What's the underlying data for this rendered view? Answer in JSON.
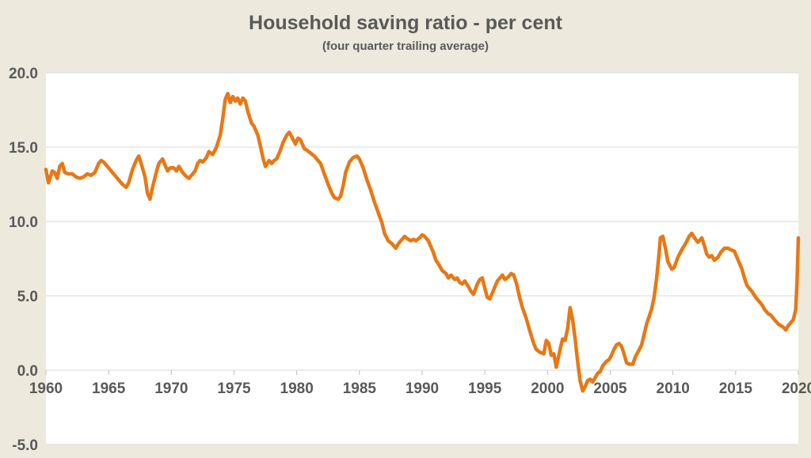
{
  "page": {
    "title": "Household saving ratio - per cent",
    "subtitle": "(four quarter trailing average)"
  },
  "chart_data": {
    "type": "line",
    "title": "Household saving ratio - per cent",
    "subtitle": "(four quarter trailing average)",
    "xlabel": "",
    "ylabel": "",
    "x_range": [
      1960,
      2020
    ],
    "ylim": [
      -5.0,
      20.0
    ],
    "grid": true,
    "legend_position": "none",
    "y_ticks": [
      {
        "value": 20.0,
        "label": "20.0"
      },
      {
        "value": 15.0,
        "label": "15.0"
      },
      {
        "value": 10.0,
        "label": "10.0"
      },
      {
        "value": 5.0,
        "label": "5.0"
      },
      {
        "value": 0.0,
        "label": "0.0"
      },
      {
        "value": -5.0,
        "label": "-5.0"
      }
    ],
    "x_ticks": [
      {
        "value": 1960,
        "label": "1960"
      },
      {
        "value": 1965,
        "label": "1965"
      },
      {
        "value": 1970,
        "label": "1970"
      },
      {
        "value": 1975,
        "label": "1975"
      },
      {
        "value": 1980,
        "label": "1980"
      },
      {
        "value": 1985,
        "label": "1985"
      },
      {
        "value": 1990,
        "label": "1990"
      },
      {
        "value": 1995,
        "label": "1995"
      },
      {
        "value": 2000,
        "label": "2000"
      },
      {
        "value": 2005,
        "label": "2005"
      },
      {
        "value": 2010,
        "label": "2010"
      },
      {
        "value": 2015,
        "label": "2015"
      },
      {
        "value": 2020,
        "label": "2020"
      }
    ],
    "colors": {
      "line": "#E87815",
      "background": "#EDE9DD",
      "plot_background": "#FFFFFF",
      "gridline": "#D9D9D9",
      "tick": "#BFBFBF",
      "text": "#595959"
    },
    "series": [
      {
        "name": "Household saving ratio (four quarter trailing average)",
        "points": [
          [
            1960.0,
            13.5
          ],
          [
            1960.2,
            12.6
          ],
          [
            1960.4,
            13.1
          ],
          [
            1960.5,
            13.4
          ],
          [
            1960.7,
            13.3
          ],
          [
            1960.9,
            12.9
          ],
          [
            1961.1,
            13.7
          ],
          [
            1961.3,
            13.9
          ],
          [
            1961.5,
            13.3
          ],
          [
            1961.8,
            13.2
          ],
          [
            1962.1,
            13.2
          ],
          [
            1962.4,
            13.0
          ],
          [
            1962.7,
            12.9
          ],
          [
            1963.0,
            13.0
          ],
          [
            1963.3,
            13.2
          ],
          [
            1963.6,
            13.1
          ],
          [
            1963.9,
            13.3
          ],
          [
            1964.2,
            13.9
          ],
          [
            1964.4,
            14.1
          ],
          [
            1964.6,
            14.0
          ],
          [
            1964.9,
            13.7
          ],
          [
            1965.2,
            13.4
          ],
          [
            1965.5,
            13.1
          ],
          [
            1965.8,
            12.8
          ],
          [
            1966.1,
            12.5
          ],
          [
            1966.4,
            12.3
          ],
          [
            1966.6,
            12.6
          ],
          [
            1966.9,
            13.5
          ],
          [
            1967.2,
            14.1
          ],
          [
            1967.4,
            14.4
          ],
          [
            1967.6,
            13.9
          ],
          [
            1967.9,
            13.0
          ],
          [
            1968.1,
            11.9
          ],
          [
            1968.3,
            11.5
          ],
          [
            1968.5,
            12.3
          ],
          [
            1968.8,
            13.3
          ],
          [
            1969.0,
            13.9
          ],
          [
            1969.3,
            14.2
          ],
          [
            1969.5,
            13.8
          ],
          [
            1969.7,
            13.4
          ],
          [
            1969.9,
            13.6
          ],
          [
            1970.2,
            13.6
          ],
          [
            1970.4,
            13.4
          ],
          [
            1970.6,
            13.7
          ],
          [
            1970.9,
            13.3
          ],
          [
            1971.1,
            13.1
          ],
          [
            1971.4,
            12.9
          ],
          [
            1971.6,
            13.1
          ],
          [
            1971.9,
            13.4
          ],
          [
            1972.1,
            13.9
          ],
          [
            1972.3,
            14.1
          ],
          [
            1972.5,
            14.0
          ],
          [
            1972.8,
            14.3
          ],
          [
            1973.0,
            14.7
          ],
          [
            1973.3,
            14.5
          ],
          [
            1973.6,
            15.0
          ],
          [
            1973.9,
            15.8
          ],
          [
            1974.1,
            16.9
          ],
          [
            1974.3,
            18.2
          ],
          [
            1974.5,
            18.6
          ],
          [
            1974.7,
            18.0
          ],
          [
            1974.9,
            18.4
          ],
          [
            1975.1,
            18.1
          ],
          [
            1975.3,
            18.3
          ],
          [
            1975.5,
            17.9
          ],
          [
            1975.7,
            18.3
          ],
          [
            1975.9,
            18.1
          ],
          [
            1976.1,
            17.4
          ],
          [
            1976.4,
            16.6
          ],
          [
            1976.6,
            16.4
          ],
          [
            1976.9,
            15.8
          ],
          [
            1977.1,
            15.1
          ],
          [
            1977.3,
            14.3
          ],
          [
            1977.5,
            13.7
          ],
          [
            1977.8,
            14.1
          ],
          [
            1978.0,
            13.9
          ],
          [
            1978.2,
            14.1
          ],
          [
            1978.4,
            14.2
          ],
          [
            1978.7,
            14.8
          ],
          [
            1978.9,
            15.3
          ],
          [
            1979.2,
            15.8
          ],
          [
            1979.4,
            16.0
          ],
          [
            1979.6,
            15.7
          ],
          [
            1979.9,
            15.2
          ],
          [
            1980.1,
            15.6
          ],
          [
            1980.3,
            15.5
          ],
          [
            1980.6,
            14.9
          ],
          [
            1980.8,
            14.8
          ],
          [
            1981.1,
            14.6
          ],
          [
            1981.4,
            14.4
          ],
          [
            1981.7,
            14.1
          ],
          [
            1981.9,
            13.9
          ],
          [
            1982.2,
            13.2
          ],
          [
            1982.5,
            12.5
          ],
          [
            1982.8,
            11.9
          ],
          [
            1983.0,
            11.6
          ],
          [
            1983.3,
            11.5
          ],
          [
            1983.5,
            11.7
          ],
          [
            1983.7,
            12.4
          ],
          [
            1983.9,
            13.3
          ],
          [
            1984.2,
            14.0
          ],
          [
            1984.5,
            14.3
          ],
          [
            1984.8,
            14.4
          ],
          [
            1985.0,
            14.2
          ],
          [
            1985.3,
            13.6
          ],
          [
            1985.6,
            12.8
          ],
          [
            1985.9,
            12.1
          ],
          [
            1986.2,
            11.3
          ],
          [
            1986.5,
            10.6
          ],
          [
            1986.8,
            9.9
          ],
          [
            1987.0,
            9.2
          ],
          [
            1987.3,
            8.7
          ],
          [
            1987.6,
            8.5
          ],
          [
            1987.9,
            8.2
          ],
          [
            1988.1,
            8.5
          ],
          [
            1988.4,
            8.8
          ],
          [
            1988.6,
            9.0
          ],
          [
            1988.9,
            8.8
          ],
          [
            1989.1,
            8.7
          ],
          [
            1989.3,
            8.8
          ],
          [
            1989.5,
            8.7
          ],
          [
            1989.8,
            8.9
          ],
          [
            1990.0,
            9.1
          ],
          [
            1990.2,
            9.0
          ],
          [
            1990.5,
            8.7
          ],
          [
            1990.7,
            8.3
          ],
          [
            1990.9,
            7.9
          ],
          [
            1991.1,
            7.4
          ],
          [
            1991.4,
            7.0
          ],
          [
            1991.6,
            6.7
          ],
          [
            1991.9,
            6.5
          ],
          [
            1992.1,
            6.2
          ],
          [
            1992.3,
            6.4
          ],
          [
            1992.6,
            6.1
          ],
          [
            1992.8,
            6.2
          ],
          [
            1993.0,
            5.9
          ],
          [
            1993.2,
            5.8
          ],
          [
            1993.4,
            6.0
          ],
          [
            1993.7,
            5.6
          ],
          [
            1993.9,
            5.3
          ],
          [
            1994.1,
            5.1
          ],
          [
            1994.4,
            5.8
          ],
          [
            1994.6,
            6.1
          ],
          [
            1994.8,
            6.2
          ],
          [
            1995.0,
            5.5
          ],
          [
            1995.2,
            4.9
          ],
          [
            1995.4,
            4.8
          ],
          [
            1995.6,
            5.2
          ],
          [
            1995.8,
            5.6
          ],
          [
            1996.0,
            6.0
          ],
          [
            1996.2,
            6.2
          ],
          [
            1996.4,
            6.4
          ],
          [
            1996.6,
            6.1
          ],
          [
            1996.9,
            6.3
          ],
          [
            1997.1,
            6.5
          ],
          [
            1997.3,
            6.4
          ],
          [
            1997.5,
            5.9
          ],
          [
            1997.8,
            4.8
          ],
          [
            1998.0,
            4.2
          ],
          [
            1998.3,
            3.5
          ],
          [
            1998.6,
            2.6
          ],
          [
            1998.9,
            1.8
          ],
          [
            1999.1,
            1.4
          ],
          [
            1999.4,
            1.2
          ],
          [
            1999.7,
            1.1
          ],
          [
            1999.9,
            2.0
          ],
          [
            2000.1,
            1.8
          ],
          [
            2000.3,
            1.0
          ],
          [
            2000.5,
            1.1
          ],
          [
            2000.7,
            0.2
          ],
          [
            2001.0,
            1.4
          ],
          [
            2001.2,
            2.1
          ],
          [
            2001.4,
            2.0
          ],
          [
            2001.6,
            2.8
          ],
          [
            2001.8,
            4.2
          ],
          [
            2002.0,
            3.4
          ],
          [
            2002.2,
            2.1
          ],
          [
            2002.4,
            0.6
          ],
          [
            2002.6,
            -0.7
          ],
          [
            2002.8,
            -1.4
          ],
          [
            2003.0,
            -1.1
          ],
          [
            2003.2,
            -0.7
          ],
          [
            2003.4,
            -0.6
          ],
          [
            2003.6,
            -0.8
          ],
          [
            2003.8,
            -0.5
          ],
          [
            2004.0,
            -0.2
          ],
          [
            2004.2,
            -0.1
          ],
          [
            2004.4,
            0.3
          ],
          [
            2004.7,
            0.6
          ],
          [
            2004.9,
            0.7
          ],
          [
            2005.1,
            1.0
          ],
          [
            2005.3,
            1.4
          ],
          [
            2005.5,
            1.7
          ],
          [
            2005.7,
            1.8
          ],
          [
            2005.9,
            1.6
          ],
          [
            2006.1,
            1.1
          ],
          [
            2006.3,
            0.5
          ],
          [
            2006.5,
            0.4
          ],
          [
            2006.8,
            0.4
          ],
          [
            2007.0,
            0.9
          ],
          [
            2007.2,
            1.2
          ],
          [
            2007.5,
            1.7
          ],
          [
            2007.7,
            2.4
          ],
          [
            2007.9,
            3.1
          ],
          [
            2008.1,
            3.6
          ],
          [
            2008.3,
            4.1
          ],
          [
            2008.5,
            4.9
          ],
          [
            2008.7,
            6.2
          ],
          [
            2008.9,
            7.9
          ],
          [
            2009.0,
            8.9
          ],
          [
            2009.2,
            9.0
          ],
          [
            2009.4,
            8.2
          ],
          [
            2009.6,
            7.3
          ],
          [
            2009.9,
            6.8
          ],
          [
            2010.1,
            6.9
          ],
          [
            2010.4,
            7.6
          ],
          [
            2010.7,
            8.1
          ],
          [
            2011.0,
            8.5
          ],
          [
            2011.3,
            9.0
          ],
          [
            2011.5,
            9.2
          ],
          [
            2011.8,
            8.8
          ],
          [
            2012.0,
            8.6
          ],
          [
            2012.3,
            8.9
          ],
          [
            2012.5,
            8.4
          ],
          [
            2012.7,
            7.8
          ],
          [
            2012.9,
            7.6
          ],
          [
            2013.1,
            7.7
          ],
          [
            2013.3,
            7.4
          ],
          [
            2013.6,
            7.6
          ],
          [
            2013.8,
            7.9
          ],
          [
            2014.1,
            8.2
          ],
          [
            2014.4,
            8.2
          ],
          [
            2014.6,
            8.1
          ],
          [
            2014.9,
            8.0
          ],
          [
            2015.1,
            7.6
          ],
          [
            2015.3,
            7.2
          ],
          [
            2015.5,
            6.8
          ],
          [
            2015.7,
            6.2
          ],
          [
            2015.9,
            5.7
          ],
          [
            2016.1,
            5.5
          ],
          [
            2016.3,
            5.3
          ],
          [
            2016.6,
            4.9
          ],
          [
            2016.9,
            4.6
          ],
          [
            2017.1,
            4.4
          ],
          [
            2017.3,
            4.1
          ],
          [
            2017.6,
            3.8
          ],
          [
            2017.8,
            3.7
          ],
          [
            2018.0,
            3.5
          ],
          [
            2018.2,
            3.3
          ],
          [
            2018.4,
            3.1
          ],
          [
            2018.6,
            3.0
          ],
          [
            2018.8,
            2.9
          ],
          [
            2019.0,
            2.7
          ],
          [
            2019.2,
            3.0
          ],
          [
            2019.4,
            3.2
          ],
          [
            2019.6,
            3.4
          ],
          [
            2019.8,
            4.1
          ],
          [
            2019.9,
            6.0
          ],
          [
            2020.0,
            8.9
          ]
        ]
      }
    ]
  }
}
